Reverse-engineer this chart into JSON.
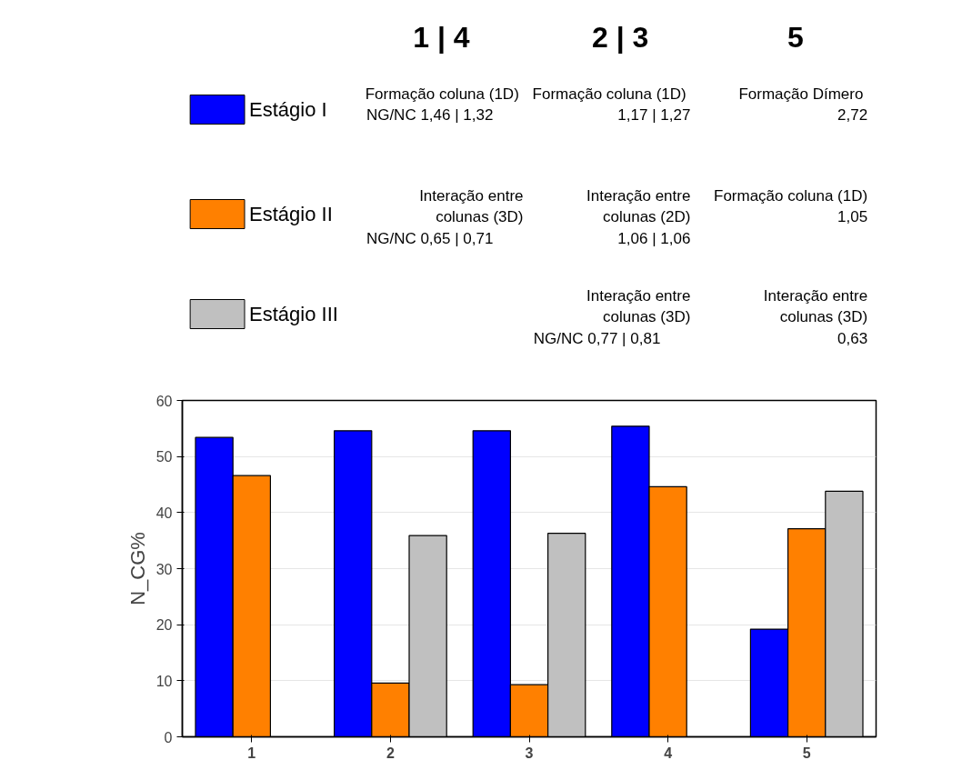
{
  "chart_data": {
    "type": "bar",
    "categories": [
      "1",
      "2",
      "3",
      "4",
      "5"
    ],
    "ylabel": "N_CG%",
    "ylim": [
      0,
      60
    ],
    "yticks": [
      0,
      10,
      20,
      30,
      40,
      50,
      60
    ],
    "grid": "y",
    "legend": "top left",
    "series": [
      {
        "name": "Estágio I",
        "color": "#0000ff",
        "values": [
          53.4,
          54.6,
          54.6,
          55.4,
          19.2
        ]
      },
      {
        "name": "Estágio II",
        "color": "#ff8000",
        "values": [
          46.6,
          9.6,
          9.3,
          44.6,
          37.1
        ]
      },
      {
        "name": "Estágio III",
        "color": "#c0c0c0",
        "values": [
          null,
          35.9,
          36.3,
          null,
          43.8
        ]
      }
    ],
    "annotations": [
      "1 | 4",
      "2 | 3",
      "5",
      "Formação  coluna (1D)\nNG/NC        1,46 | 1,32",
      "Formação  coluna (1D)\n1,17 | 1,27",
      "Formação  Dímero\n2,72",
      "Interação entre\ncolunas (3D)\nNG/NC        0,65 | 0,71",
      "Interação entre\ncolunas (2D)\n1,06 | 1,06",
      "Formação coluna (1D)\n1,05",
      "Interação entre\ncolunas (3D)\nNG/NC        0,77 | 0,81",
      "Interação entre\ncolunas (3D)\n0,63"
    ]
  }
}
